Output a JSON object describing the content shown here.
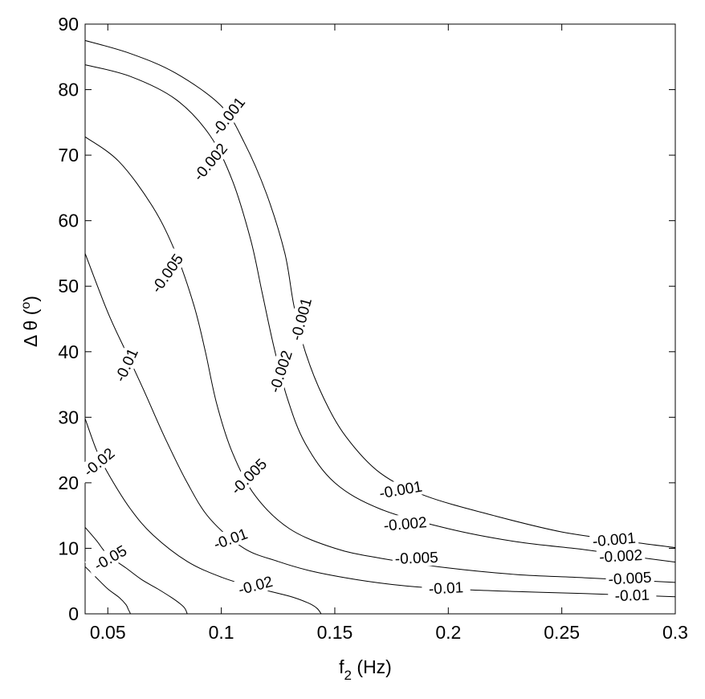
{
  "chart_data": {
    "type": "contour",
    "xlabel": "f",
    "xlabel_subscript": "2",
    "xlabel_unit": "(Hz)",
    "ylabel": "Δ θ (",
    "ylabel_superscript": "o",
    "ylabel_close": ")",
    "xlim": [
      0.04,
      0.3
    ],
    "ylim": [
      0,
      90
    ],
    "xticks": [
      0.05,
      0.1,
      0.15,
      0.2,
      0.25,
      0.3
    ],
    "xtick_labels": [
      "0.05",
      "0.1",
      "0.15",
      "0.2",
      "0.25",
      "0.3"
    ],
    "yticks": [
      0,
      10,
      20,
      30,
      40,
      50,
      60,
      70,
      80,
      90
    ],
    "ytick_labels": [
      "0",
      "10",
      "20",
      "30",
      "40",
      "50",
      "60",
      "70",
      "80",
      "90"
    ],
    "grid": false,
    "levels": [
      {
        "level": "-0.001",
        "points": [
          [
            0.04,
            87.5
          ],
          [
            0.06,
            85.5
          ],
          [
            0.08,
            82.5
          ],
          [
            0.1,
            77.5
          ],
          [
            0.11,
            72
          ],
          [
            0.12,
            64
          ],
          [
            0.128,
            55
          ],
          [
            0.132,
            47
          ],
          [
            0.137,
            40
          ],
          [
            0.145,
            33
          ],
          [
            0.155,
            27
          ],
          [
            0.17,
            21.5
          ],
          [
            0.19,
            18
          ],
          [
            0.22,
            15
          ],
          [
            0.25,
            12.5
          ],
          [
            0.28,
            11
          ],
          [
            0.3,
            10.1
          ]
        ],
        "labels": [
          [
            0.103,
            76,
            -52
          ],
          [
            0.135,
            45,
            -75
          ],
          [
            0.179,
            19,
            -10
          ],
          [
            0.273,
            11.4,
            -5
          ]
        ]
      },
      {
        "level": "-0.002",
        "points": [
          [
            0.04,
            83.8
          ],
          [
            0.06,
            82
          ],
          [
            0.08,
            78.5
          ],
          [
            0.095,
            73
          ],
          [
            0.105,
            66
          ],
          [
            0.113,
            57
          ],
          [
            0.118,
            49
          ],
          [
            0.123,
            41
          ],
          [
            0.129,
            33
          ],
          [
            0.137,
            26
          ],
          [
            0.15,
            20
          ],
          [
            0.17,
            16
          ],
          [
            0.2,
            13
          ],
          [
            0.23,
            11
          ],
          [
            0.26,
            9.8
          ],
          [
            0.28,
            8.8
          ],
          [
            0.3,
            7.9
          ]
        ],
        "labels": [
          [
            0.095,
            69,
            -50
          ],
          [
            0.126,
            37,
            -72
          ],
          [
            0.181,
            13.8,
            -5
          ],
          [
            0.276,
            8.9,
            -3
          ]
        ]
      },
      {
        "level": "-0.005",
        "points": [
          [
            0.04,
            72.8
          ],
          [
            0.055,
            69
          ],
          [
            0.07,
            62
          ],
          [
            0.08,
            55
          ],
          [
            0.088,
            47
          ],
          [
            0.093,
            40
          ],
          [
            0.098,
            32
          ],
          [
            0.105,
            24.5
          ],
          [
            0.115,
            18
          ],
          [
            0.13,
            13
          ],
          [
            0.15,
            10
          ],
          [
            0.17,
            8.5
          ],
          [
            0.2,
            7
          ],
          [
            0.23,
            6
          ],
          [
            0.26,
            5.5
          ],
          [
            0.3,
            4.8
          ]
        ],
        "labels": [
          [
            0.076,
            52,
            -55
          ],
          [
            0.112,
            21,
            -45
          ],
          [
            0.186,
            8.6,
            -2
          ],
          [
            0.28,
            5.5,
            -3
          ]
        ]
      },
      {
        "level": "-0.01",
        "points": [
          [
            0.04,
            55
          ],
          [
            0.05,
            46
          ],
          [
            0.058,
            40
          ],
          [
            0.066,
            34
          ],
          [
            0.075,
            27
          ],
          [
            0.085,
            20
          ],
          [
            0.095,
            14.5
          ],
          [
            0.11,
            10
          ],
          [
            0.125,
            8
          ],
          [
            0.14,
            6.5
          ],
          [
            0.16,
            5.2
          ],
          [
            0.18,
            4.3
          ],
          [
            0.2,
            3.8
          ],
          [
            0.23,
            3.4
          ],
          [
            0.26,
            3.1
          ],
          [
            0.3,
            2.6
          ]
        ],
        "labels": [
          [
            0.058,
            38,
            -65
          ],
          [
            0.104,
            11.5,
            -20
          ],
          [
            0.199,
            4,
            -3
          ],
          [
            0.281,
            2.9,
            -2
          ]
        ]
      },
      {
        "level": "-0.02",
        "points": [
          [
            0.04,
            29.8
          ],
          [
            0.045,
            25
          ],
          [
            0.05,
            21.5
          ],
          [
            0.06,
            16
          ],
          [
            0.07,
            12
          ],
          [
            0.085,
            8
          ],
          [
            0.1,
            5.6
          ],
          [
            0.115,
            4
          ],
          [
            0.13,
            2.7
          ],
          [
            0.138,
            1.7
          ],
          [
            0.142,
            0.9
          ],
          [
            0.144,
            0
          ]
        ],
        "labels": [
          [
            0.046,
            23.2,
            -40
          ],
          [
            0.115,
            4.4,
            -15
          ]
        ]
      },
      {
        "level": "-0.05",
        "points": [
          [
            0.04,
            13.2
          ],
          [
            0.045,
            11.2
          ],
          [
            0.05,
            9
          ],
          [
            0.058,
            7
          ],
          [
            0.065,
            5.2
          ],
          [
            0.072,
            3.8
          ],
          [
            0.078,
            2.5
          ],
          [
            0.082,
            1.5
          ],
          [
            0.084,
            0.8
          ],
          [
            0.085,
            0
          ]
        ],
        "labels": [
          [
            0.051,
            8.6,
            -30
          ]
        ]
      },
      {
        "level": "",
        "points": [
          [
            0.04,
            7.2
          ],
          [
            0.045,
            5.5
          ],
          [
            0.05,
            3.8
          ],
          [
            0.055,
            2.5
          ],
          [
            0.058,
            1.4
          ],
          [
            0.059,
            0.7
          ],
          [
            0.06,
            0
          ]
        ],
        "labels": []
      }
    ]
  }
}
